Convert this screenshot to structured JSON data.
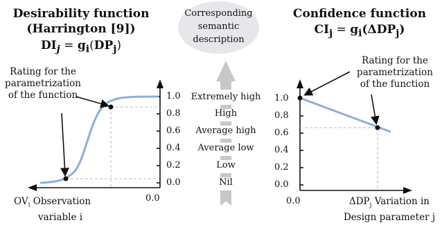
{
  "left": {
    "title_line1": "Desirability function",
    "title_line2": "(Harrington [9])",
    "formula": {
      "lhs_main": "DI",
      "lhs_sub": "j",
      "eq": " = ",
      "fn": "g",
      "fn_sub": "i",
      "arg_open": "(",
      "arg_main": "DP",
      "arg_sub": "j",
      "arg_close": ")"
    },
    "note": [
      "Rating for the",
      "parametrization",
      "of the function"
    ],
    "y_ticks": [
      "1.0",
      "0.8",
      "0.6",
      "0.4",
      "0.2",
      "0.0"
    ],
    "x_origin_label": "0.0",
    "x_label_prefix": "OV",
    "x_label_sub": "i",
    "x_label_line1_rest": " Observation",
    "x_label_line2": "variable i",
    "curve_color": "#8eaedb"
  },
  "middle": {
    "bubble": [
      "Corresponding",
      "semantic",
      "description"
    ],
    "levels": [
      "Extremely high",
      "High",
      "Average high",
      "Average low",
      "Low",
      "Nil"
    ],
    "arrow_color": "#c8c8c8"
  },
  "right": {
    "title": "Confidence function",
    "formula": {
      "lhs_main": "CI",
      "lhs_sub": "j",
      "eq": " = ",
      "fn": "g",
      "fn_sub": "i",
      "arg_open": "(ΔDP",
      "arg_sub": "j",
      "arg_close": ")"
    },
    "note": [
      "Rating for the",
      "parametrization",
      "of the function"
    ],
    "y_ticks": [
      "1.0",
      "0.8",
      "0.6",
      "0.4",
      "0.2",
      "0.0"
    ],
    "x_origin_label": "0.0",
    "x_label_prefix": "ΔDP",
    "x_label_sub": "j",
    "x_label_line1_rest": " Variation in",
    "x_label_line2": "Design parameter j",
    "line_color": "#8eaedb"
  }
}
